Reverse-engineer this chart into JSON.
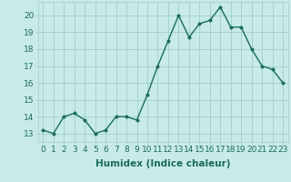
{
  "x": [
    0,
    1,
    2,
    3,
    4,
    5,
    6,
    7,
    8,
    9,
    10,
    11,
    12,
    13,
    14,
    15,
    16,
    17,
    18,
    19,
    20,
    21,
    22,
    23
  ],
  "y": [
    13.2,
    13.0,
    14.0,
    14.2,
    13.8,
    13.0,
    13.2,
    14.0,
    14.0,
    13.8,
    15.3,
    17.0,
    18.5,
    20.0,
    18.7,
    19.5,
    19.7,
    20.5,
    19.3,
    19.3,
    18.0,
    17.0,
    16.8,
    16.0
  ],
  "line_color": "#1a6b5a",
  "marker_color": "#1a6b5a",
  "bg_color": "#c8ebe8",
  "grid_color": "#9ecfcb",
  "xlabel": "Humidex (Indice chaleur)",
  "xlim": [
    -0.5,
    23.5
  ],
  "ylim": [
    12.5,
    20.8
  ],
  "yticks": [
    13,
    14,
    15,
    16,
    17,
    18,
    19,
    20
  ],
  "xtick_labels": [
    "0",
    "1",
    "2",
    "3",
    "4",
    "5",
    "6",
    "7",
    "8",
    "9",
    "10",
    "11",
    "12",
    "13",
    "14",
    "15",
    "16",
    "17",
    "18",
    "19",
    "20",
    "21",
    "22",
    "23"
  ],
  "font_size": 6.5,
  "label_font_size": 7.5,
  "line_width": 1.0,
  "marker_size": 2.5
}
